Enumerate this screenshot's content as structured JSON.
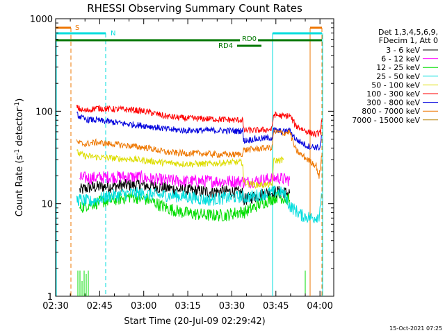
{
  "chart_data": {
    "type": "line",
    "title": "RHESSI Observing Summary Count Rates",
    "xlabel": "Start Time (20-Jul-09 02:29:42)",
    "ylabel_main": "Count Rate (s",
    "ylabel_sup1": "-1",
    "ylabel_mid": " detector",
    "ylabel_sup2": "-1",
    "ylabel_end": ")",
    "footer": "15-Oct-2021 07:25",
    "y_scale": "log",
    "xlim_min": [
      0.3,
      95
    ],
    "ylim": [
      1,
      1000
    ],
    "x_ticks": [
      {
        "label": "02:30",
        "min": 0.3
      },
      {
        "label": "02:45",
        "min": 15.3
      },
      {
        "label": "03:00",
        "min": 30.3
      },
      {
        "label": "03:15",
        "min": 45.3
      },
      {
        "label": "03:30",
        "min": 60.3
      },
      {
        "label": "03:45",
        "min": 75.3
      },
      {
        "label": "04:00",
        "min": 90.3
      }
    ],
    "y_ticks": [
      {
        "label": "1",
        "value": 1
      },
      {
        "label": "10",
        "value": 10
      },
      {
        "label": "100",
        "value": 100
      },
      {
        "label": "1000",
        "value": 1000
      }
    ],
    "legend_header": [
      "Det 1,3,4,5,6,9,",
      "FDecim 1, Att 0"
    ],
    "series": [
      {
        "name": "3 - 6 keV",
        "color": "#000000",
        "points": [
          [
            8.5,
            14
          ],
          [
            12,
            15
          ],
          [
            20,
            15.5
          ],
          [
            28,
            16
          ],
          [
            36,
            15
          ],
          [
            44,
            14
          ],
          [
            52,
            13.5
          ],
          [
            60,
            13.5
          ],
          [
            64,
            13
          ],
          [
            64.3,
            11
          ],
          [
            68,
            12
          ],
          [
            72,
            13
          ],
          [
            76,
            13.5
          ],
          [
            80,
            13
          ]
        ]
      },
      {
        "name": "6 - 12 keV",
        "color": "#ff00ff",
        "points": [
          [
            8.5,
            19
          ],
          [
            12,
            19
          ],
          [
            20,
            19.5
          ],
          [
            28,
            19.5
          ],
          [
            36,
            18
          ],
          [
            44,
            17.5
          ],
          [
            52,
            17.5
          ],
          [
            60,
            17.5
          ],
          [
            64,
            17.5
          ],
          [
            64.3,
            17
          ],
          [
            70,
            18
          ],
          [
            76,
            19
          ],
          [
            80,
            18
          ]
        ]
      },
      {
        "name": "12 - 25 keV",
        "color": "#00dd00",
        "points": [
          [
            8.5,
            9
          ],
          [
            12,
            10
          ],
          [
            20,
            11
          ],
          [
            26,
            12
          ],
          [
            32,
            11
          ],
          [
            38,
            9
          ],
          [
            44,
            8
          ],
          [
            52,
            7.5
          ],
          [
            58,
            7.5
          ],
          [
            62,
            8
          ],
          [
            64,
            8.2
          ],
          [
            64.3,
            8
          ],
          [
            70,
            10
          ],
          [
            76,
            12
          ],
          [
            80,
            11
          ]
        ]
      },
      {
        "name": "25 - 50 keV",
        "color": "#00dddd",
        "points": [
          [
            7.5,
            11
          ],
          [
            9,
            11
          ],
          [
            12,
            10.5
          ],
          [
            18,
            12
          ],
          [
            26,
            13
          ],
          [
            34,
            12.5
          ],
          [
            44,
            12
          ],
          [
            52,
            11
          ],
          [
            58,
            11.5
          ],
          [
            64,
            12
          ],
          [
            64.3,
            11.5
          ],
          [
            70,
            12.5
          ],
          [
            75,
            13.5
          ],
          [
            78,
            13
          ],
          [
            80,
            9.5
          ],
          [
            84,
            7.5
          ],
          [
            88,
            7
          ],
          [
            90,
            7.5
          ],
          [
            90.8,
            13
          ]
        ]
      },
      {
        "name": "50 - 100 keV",
        "color": "#dddd00",
        "points": [
          [
            7.5,
            36
          ],
          [
            10,
            33
          ],
          [
            14,
            32
          ],
          [
            20,
            31
          ],
          [
            28,
            30
          ],
          [
            36,
            28
          ],
          [
            44,
            27
          ],
          [
            52,
            27
          ],
          [
            60,
            28
          ],
          [
            64,
            28
          ],
          [
            64.3,
            17
          ],
          [
            68,
            16
          ],
          [
            72,
            16
          ],
          [
            74,
            16
          ],
          [
            74.5,
            29
          ],
          [
            78,
            30
          ]
        ]
      },
      {
        "name": "100 - 300 keV",
        "color": "#ff0000",
        "points": [
          [
            7.5,
            110
          ],
          [
            10,
            100
          ],
          [
            14,
            108
          ],
          [
            20,
            105
          ],
          [
            26,
            104
          ],
          [
            32,
            98
          ],
          [
            38,
            88
          ],
          [
            44,
            84
          ],
          [
            50,
            83
          ],
          [
            56,
            82
          ],
          [
            62,
            80
          ],
          [
            64,
            81
          ],
          [
            64.3,
            62
          ],
          [
            68,
            62
          ],
          [
            72,
            63
          ],
          [
            74,
            64
          ],
          [
            74.5,
            92
          ],
          [
            78,
            88
          ],
          [
            80,
            90
          ],
          [
            82,
            70
          ],
          [
            86,
            60
          ],
          [
            89,
            56
          ],
          [
            90.5,
            60
          ],
          [
            91,
            82
          ]
        ]
      },
      {
        "name": "300 - 800 keV",
        "color": "#0000dd",
        "points": [
          [
            7.5,
            92
          ],
          [
            10,
            82
          ],
          [
            14,
            80
          ],
          [
            20,
            76
          ],
          [
            26,
            72
          ],
          [
            32,
            69
          ],
          [
            38,
            64
          ],
          [
            44,
            62
          ],
          [
            50,
            62
          ],
          [
            56,
            62
          ],
          [
            62,
            61
          ],
          [
            64,
            62
          ],
          [
            64.3,
            48
          ],
          [
            68,
            50
          ],
          [
            72,
            51
          ],
          [
            74,
            52
          ],
          [
            74.5,
            62
          ],
          [
            78,
            60
          ],
          [
            80,
            62
          ],
          [
            82,
            50
          ],
          [
            86,
            42
          ],
          [
            89,
            41
          ],
          [
            90.3,
            40
          ],
          [
            90.8,
            55
          ]
        ]
      },
      {
        "name": "800 - 7000 keV",
        "color": "#ee7700",
        "points": [
          [
            7.5,
            46
          ],
          [
            10,
            44
          ],
          [
            14,
            46
          ],
          [
            20,
            44
          ],
          [
            26,
            42
          ],
          [
            32,
            40
          ],
          [
            38,
            36
          ],
          [
            44,
            35
          ],
          [
            50,
            35
          ],
          [
            56,
            34
          ],
          [
            62,
            34
          ],
          [
            64,
            35
          ],
          [
            64.3,
            38
          ],
          [
            68,
            39
          ],
          [
            72,
            40
          ],
          [
            74,
            40
          ],
          [
            74.5,
            60
          ],
          [
            78,
            58
          ],
          [
            80,
            60
          ],
          [
            82,
            38
          ],
          [
            86,
            30
          ],
          [
            89,
            26
          ],
          [
            90,
            19
          ],
          [
            90.8,
            33
          ]
        ]
      },
      {
        "name": "7000 - 15000 keV",
        "color": "#b8860b",
        "points": []
      }
    ],
    "annotations": [
      {
        "label": "S",
        "color": "#ee7700"
      },
      {
        "label": "N",
        "color": "#00dddd"
      },
      {
        "label": "RD0",
        "color": "#007700"
      },
      {
        "label": "RD4",
        "color": "#007700"
      }
    ]
  }
}
